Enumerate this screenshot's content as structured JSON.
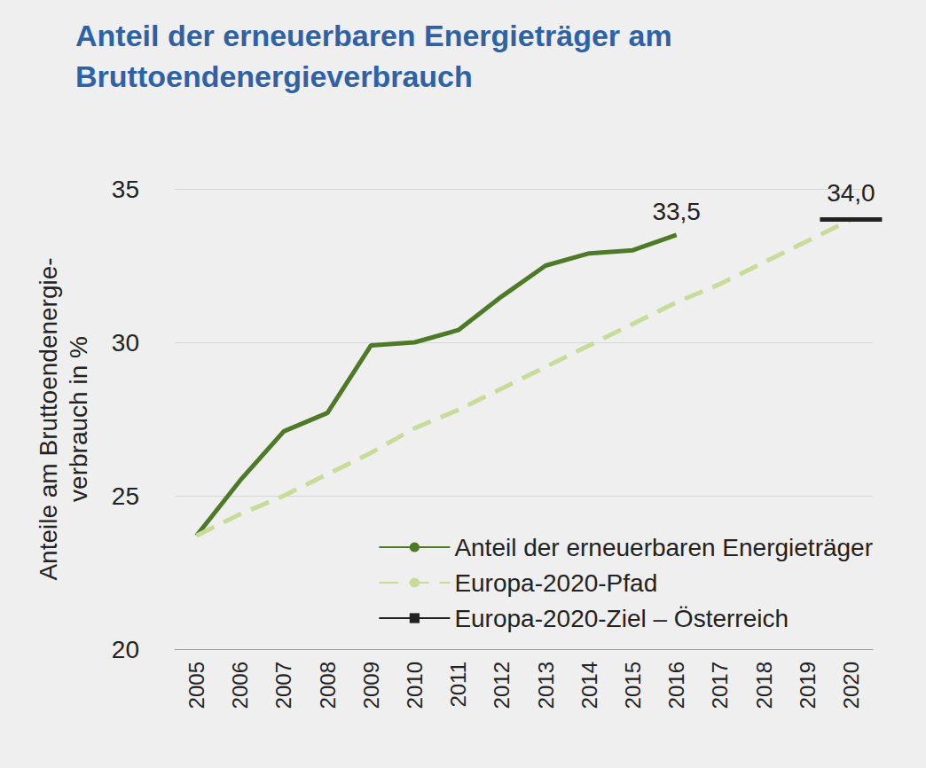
{
  "chart_data": {
    "type": "line",
    "title": "Anteil der erneuerbaren Energieträger am\nBruttoendenergieverbrauch",
    "y_label": "Anteile am Bruttoendenergie-\nverbrauch in %",
    "categories": [
      "2005",
      "2006",
      "2007",
      "2008",
      "2009",
      "2010",
      "2011",
      "2012",
      "2013",
      "2014",
      "2015",
      "2016",
      "2017",
      "2018",
      "2019",
      "2020"
    ],
    "series": [
      {
        "name": "Anteil der erneuerbaren Energieträger",
        "color": "#4e7a27",
        "line_style": "solid",
        "marker": "none",
        "values": [
          23.7,
          25.5,
          27.1,
          27.7,
          29.9,
          30.0,
          30.4,
          31.5,
          32.5,
          32.9,
          33.0,
          33.5,
          null,
          null,
          null,
          null
        ],
        "value_labels": [
          null,
          null,
          null,
          null,
          null,
          null,
          null,
          null,
          null,
          null,
          null,
          "33,5",
          null,
          null,
          null,
          null
        ]
      },
      {
        "name": "Europa-2020-Pfad",
        "color": "#c6dc98",
        "line_style": "dashed",
        "marker": "none",
        "values": [
          23.7,
          24.4,
          25.0,
          25.7,
          26.4,
          27.2,
          27.8,
          28.5,
          29.2,
          29.9,
          30.6,
          31.3,
          31.9,
          32.6,
          33.3,
          34.0
        ]
      },
      {
        "name": "Europa-2020-Ziel – Österreich",
        "color": "#222222",
        "line_style": "solid",
        "marker": "hline",
        "values": [
          null,
          null,
          null,
          null,
          null,
          null,
          null,
          null,
          null,
          null,
          null,
          null,
          null,
          null,
          null,
          34.0
        ],
        "value_labels": [
          null,
          null,
          null,
          null,
          null,
          null,
          null,
          null,
          null,
          null,
          null,
          null,
          null,
          null,
          null,
          "34,0"
        ]
      }
    ],
    "ylim": [
      20,
      35
    ],
    "yticks": [
      20,
      25,
      30,
      35
    ],
    "grid": true,
    "legend": "lower right"
  }
}
